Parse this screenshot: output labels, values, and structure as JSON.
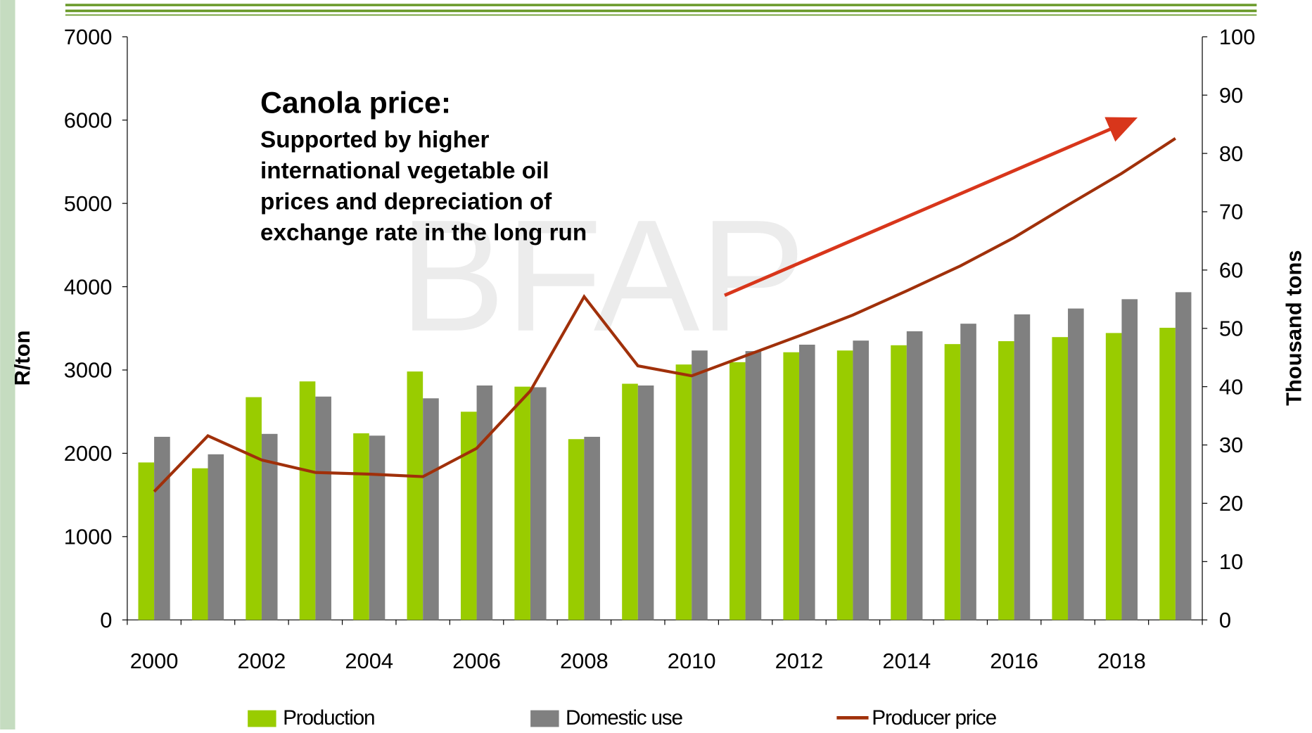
{
  "chart_data": {
    "type": "bar_line",
    "categories": [
      "2000",
      null,
      "2002",
      null,
      "2004",
      null,
      "2006",
      null,
      "2008",
      null,
      "2010",
      null,
      "2012",
      null,
      "2014",
      null,
      "2016",
      null,
      "2018",
      null
    ],
    "series": [
      {
        "name": "Production",
        "color": "#99cc00",
        "type": "bar",
        "axis": "y2",
        "values": [
          27.0,
          26.0,
          38.2,
          40.9,
          32.0,
          42.6,
          35.7,
          40.0,
          31.0,
          40.5,
          43.8,
          44.2,
          45.9,
          46.2,
          47.1,
          47.3,
          47.8,
          48.5,
          49.2,
          50.1
        ]
      },
      {
        "name": "Domestic use",
        "color": "#808080",
        "type": "bar",
        "axis": "y2",
        "values": [
          31.4,
          28.4,
          31.9,
          38.3,
          31.6,
          38.0,
          40.2,
          39.9,
          31.4,
          40.2,
          46.2,
          46.1,
          47.2,
          47.9,
          49.5,
          50.8,
          52.4,
          53.4,
          55.0,
          56.2
        ]
      },
      {
        "name": "Producer price",
        "color": "#a0300a",
        "type": "line",
        "values": [
          1540,
          2210,
          1920,
          1770,
          1750,
          1720,
          2060,
          2750,
          3880,
          3050,
          2930,
          3170,
          3410,
          3660,
          3950,
          4250,
          4590,
          4980,
          5360,
          5780
        ]
      }
    ],
    "ylabel": "R/ton",
    "y2label": "Thousand tons",
    "ylim": [
      0,
      7000
    ],
    "yticks": [
      0,
      1000,
      2000,
      3000,
      4000,
      5000,
      6000,
      7000
    ],
    "y2lim": [
      0,
      100
    ],
    "y2ticks": [
      0,
      10,
      20,
      30,
      40,
      50,
      60,
      70,
      80,
      90,
      100
    ],
    "annotation_title": "Canola price:",
    "annotation_lines": [
      "Supported by higher",
      "international vegetable oil",
      "prices and depreciation of",
      "exchange rate in the long run"
    ]
  }
}
